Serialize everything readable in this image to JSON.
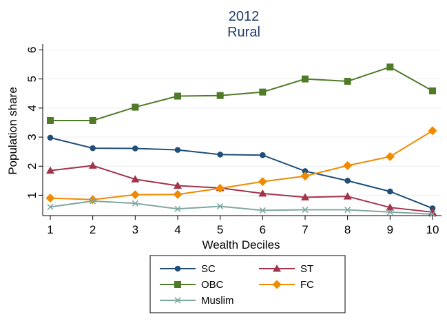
{
  "chart_data": {
    "type": "line",
    "title": "2012",
    "subtitle": "Rural",
    "xlabel": "Wealth Deciles",
    "ylabel": "Population share",
    "x": [
      1,
      2,
      3,
      4,
      5,
      6,
      7,
      8,
      9,
      10
    ],
    "xlim": [
      1,
      10
    ],
    "ylim": [
      0.3,
      6.2
    ],
    "yticks": [
      1,
      2,
      3,
      4,
      5,
      6
    ],
    "grid": true,
    "legend_position": "bottom",
    "series": [
      {
        "name": "SC",
        "color": "#1f4e79",
        "marker": "circle",
        "values": [
          2.98,
          2.62,
          2.61,
          2.56,
          2.4,
          2.38,
          1.83,
          1.5,
          1.13,
          0.55
        ]
      },
      {
        "name": "ST",
        "color": "#a3334a",
        "marker": "triangle",
        "values": [
          1.85,
          2.02,
          1.55,
          1.33,
          1.25,
          1.06,
          0.93,
          0.96,
          0.58,
          0.42
        ]
      },
      {
        "name": "OBC",
        "color": "#4f7a28",
        "marker": "square",
        "values": [
          3.57,
          3.57,
          4.03,
          4.41,
          4.43,
          4.55,
          5.0,
          4.92,
          5.41,
          4.59
        ]
      },
      {
        "name": "FC",
        "color": "#f08a00",
        "marker": "diamond",
        "values": [
          0.9,
          0.85,
          1.02,
          1.03,
          1.24,
          1.47,
          1.66,
          2.02,
          2.33,
          3.22
        ]
      },
      {
        "name": "Muslim",
        "color": "#7fa7a1",
        "marker": "x",
        "values": [
          0.6,
          0.8,
          0.72,
          0.53,
          0.62,
          0.48,
          0.5,
          0.5,
          0.42,
          0.35
        ]
      }
    ]
  }
}
